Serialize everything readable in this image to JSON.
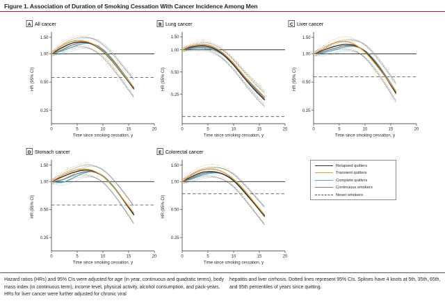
{
  "figure_title": "Figure 1. Association of Duration of Smoking Cessation With Cancer Incidence Among Men",
  "legend": [
    {
      "label": "Relapsed quitters",
      "color": "#2a2a2a",
      "dash": "solid"
    },
    {
      "label": "Transient quitters",
      "color": "#e8952a",
      "dash": "solid"
    },
    {
      "label": "Complete quitters",
      "color": "#56a9c9",
      "dash": "solid"
    },
    {
      "label": "Continuous smokers",
      "color": "#7a7a7a",
      "dash": "solid"
    },
    {
      "label": "Never smokers",
      "color": "#4a4a4a",
      "dash": "dashed"
    }
  ],
  "caption": {
    "left": "Hazard ratios (HRs) and 95% CIs were adjusted for age (in year, continuous and quadratic terms), body mass index (in continuous term), income level, physical activity, alcohol consumption, and pack-years. HRs for liver cancer were further adjusted for chronic viral",
    "right": "hepatitis and liver cirrhosis. Dotted lines represent 95% CIs. Splines have 4 knots at 5th, 35th, 65th, and 95th percentiles of years since quitting."
  },
  "chart_data": [
    {
      "type": "line",
      "letter": "A",
      "title": "All cancer",
      "xlabel": "Time since smoking cessation, y",
      "ylabel": "HR (95% CI)",
      "xlim": [
        0,
        20
      ],
      "xticks": [
        0,
        5,
        10,
        15,
        20
      ],
      "yscale": "log",
      "ylim": [
        0.18,
        1.6
      ],
      "yticks": [
        0.25,
        0.5,
        1.0,
        1.5
      ],
      "ytick_labels": [
        "0.25",
        "0.50",
        "1.00",
        "1.50"
      ],
      "reference_y": 1.0,
      "never_smokers_hr": 0.56,
      "series": [
        {
          "color": "#2a2a2a",
          "x": [
            0,
            2,
            4,
            6,
            8,
            10,
            12,
            14,
            16
          ],
          "y": [
            1.0,
            1.16,
            1.3,
            1.34,
            1.26,
            1.06,
            0.81,
            0.59,
            0.43
          ]
        },
        {
          "color": "#e8952a",
          "x": [
            0,
            2,
            4,
            6,
            8,
            10,
            12,
            14,
            16
          ],
          "y": [
            1.0,
            1.22,
            1.36,
            1.38,
            1.28,
            1.07,
            0.82,
            0.6,
            0.44
          ]
        },
        {
          "color": "#56a9c9",
          "x": [
            0,
            2,
            4,
            6,
            8,
            10,
            12,
            14,
            16
          ],
          "y": [
            1.0,
            1.07,
            1.18,
            1.28,
            1.28,
            1.12,
            0.86,
            0.62,
            0.44
          ]
        },
        {
          "color": "#7a7a7a",
          "x": [
            0,
            2,
            4,
            6,
            8,
            10,
            12,
            14,
            16
          ],
          "y": [
            1.0,
            1.1,
            1.24,
            1.32,
            1.27,
            1.09,
            0.84,
            0.6,
            0.42
          ]
        }
      ]
    },
    {
      "type": "line",
      "letter": "B",
      "title": "Lung cancer",
      "xlabel": "Time since smoking cessation, y",
      "ylabel": "HR (95% CI)",
      "xlim": [
        0,
        20
      ],
      "xticks": [
        0,
        5,
        10,
        15,
        20
      ],
      "yscale": "log",
      "ylim": [
        0.1,
        1.6
      ],
      "yticks": [
        0.25,
        0.5,
        1.0,
        1.5
      ],
      "ytick_labels": [
        "0.25",
        "0.50",
        "1.00",
        "1.50"
      ],
      "reference_y": 1.0,
      "never_smokers_hr": 0.125,
      "series": [
        {
          "color": "#2a2a2a",
          "x": [
            0,
            2,
            4,
            6,
            8,
            10,
            12,
            14,
            16
          ],
          "y": [
            1.0,
            1.1,
            1.14,
            1.06,
            0.86,
            0.62,
            0.42,
            0.29,
            0.21
          ]
        },
        {
          "color": "#e8952a",
          "x": [
            0,
            2,
            4,
            6,
            8,
            10,
            12,
            14,
            16
          ],
          "y": [
            1.0,
            1.14,
            1.18,
            1.1,
            0.9,
            0.66,
            0.45,
            0.32,
            0.23
          ]
        },
        {
          "color": "#56a9c9",
          "x": [
            0,
            2,
            4,
            6,
            8,
            10,
            12,
            14,
            16
          ],
          "y": [
            1.0,
            1.04,
            1.06,
            1.0,
            0.84,
            0.62,
            0.43,
            0.3,
            0.21
          ]
        },
        {
          "color": "#7a7a7a",
          "x": [
            0,
            2,
            4,
            6,
            8,
            10,
            12,
            14,
            16
          ],
          "y": [
            1.0,
            1.07,
            1.1,
            1.03,
            0.86,
            0.64,
            0.44,
            0.31,
            0.22
          ]
        }
      ]
    },
    {
      "type": "line",
      "letter": "C",
      "title": "Liver cancer",
      "xlabel": "Time since smoking cessation, y",
      "ylabel": "HR (95% CI)",
      "xlim": [
        0,
        20
      ],
      "xticks": [
        0,
        5,
        10,
        15,
        20
      ],
      "yscale": "log",
      "ylim": [
        0.18,
        1.6
      ],
      "yticks": [
        0.25,
        0.5,
        1.0,
        1.5
      ],
      "ytick_labels": [
        "0.25",
        "0.50",
        "1.00",
        "1.50"
      ],
      "reference_y": 1.0,
      "never_smokers_hr": 0.57,
      "series": [
        {
          "color": "#2a2a2a",
          "x": [
            0,
            2,
            4,
            6,
            8,
            10,
            12,
            14,
            16
          ],
          "y": [
            1.0,
            1.1,
            1.2,
            1.26,
            1.23,
            1.06,
            0.8,
            0.56,
            0.38
          ]
        },
        {
          "color": "#e8952a",
          "x": [
            0,
            2,
            4,
            6,
            8,
            10,
            12,
            14,
            16
          ],
          "y": [
            1.0,
            1.14,
            1.3,
            1.36,
            1.26,
            1.04,
            0.78,
            0.56,
            0.4
          ]
        },
        {
          "color": "#56a9c9",
          "x": [
            0,
            2,
            4,
            6,
            8,
            10,
            12,
            14,
            16
          ],
          "y": [
            1.0,
            1.03,
            1.1,
            1.18,
            1.2,
            1.08,
            0.84,
            0.59,
            0.4
          ]
        },
        {
          "color": "#7a7a7a",
          "x": [
            0,
            2,
            4,
            6,
            8,
            10,
            12,
            14,
            16
          ],
          "y": [
            1.0,
            1.06,
            1.14,
            1.22,
            1.21,
            1.07,
            0.82,
            0.58,
            0.39
          ]
        }
      ]
    },
    {
      "type": "line",
      "letter": "D",
      "title": "Stomach cancer",
      "xlabel": "Time since smoking cessation, y",
      "ylabel": "HR (95% CI)",
      "xlim": [
        0,
        20
      ],
      "xticks": [
        0,
        5,
        10,
        15,
        20
      ],
      "yscale": "log",
      "ylim": [
        0.18,
        1.6
      ],
      "yticks": [
        0.25,
        0.5,
        1.0,
        1.5
      ],
      "ytick_labels": [
        "0.25",
        "0.50",
        "1.00",
        "1.50"
      ],
      "reference_y": 1.0,
      "never_smokers_hr": 0.56,
      "series": [
        {
          "color": "#2a2a2a",
          "x": [
            0,
            2,
            4,
            6,
            8,
            10,
            12,
            14,
            16
          ],
          "y": [
            1.0,
            1.12,
            1.24,
            1.32,
            1.3,
            1.14,
            0.88,
            0.63,
            0.44
          ]
        },
        {
          "color": "#e8952a",
          "x": [
            0,
            2,
            4,
            6,
            8,
            10,
            12,
            14,
            16
          ],
          "y": [
            1.0,
            1.16,
            1.3,
            1.36,
            1.32,
            1.14,
            0.88,
            0.64,
            0.46
          ]
        },
        {
          "color": "#56a9c9",
          "x": [
            0,
            2,
            4,
            6,
            8,
            10,
            12,
            14,
            16
          ],
          "y": [
            1.0,
            0.98,
            1.08,
            1.22,
            1.28,
            1.16,
            0.9,
            0.64,
            0.44
          ]
        },
        {
          "color": "#7a7a7a",
          "x": [
            0,
            2,
            4,
            6,
            8,
            10,
            12,
            14,
            16
          ],
          "y": [
            1.0,
            1.04,
            1.16,
            1.26,
            1.28,
            1.14,
            0.88,
            0.63,
            0.44
          ]
        }
      ]
    },
    {
      "type": "line",
      "letter": "E",
      "title": "Colorectal cancer",
      "xlabel": "Time since smoking cessation, y",
      "ylabel": "HR (95% CI)",
      "xlim": [
        0,
        20
      ],
      "xticks": [
        0,
        5,
        10,
        15,
        20
      ],
      "yscale": "log",
      "ylim": [
        0.18,
        1.6
      ],
      "yticks": [
        0.25,
        0.5,
        1.0,
        1.5
      ],
      "ytick_labels": [
        "0.25",
        "0.50",
        "1.00",
        "1.50"
      ],
      "reference_y": 1.0,
      "never_smokers_hr": 0.74,
      "series": [
        {
          "color": "#2a2a2a",
          "x": [
            0,
            2,
            4,
            6,
            8,
            10,
            12,
            14,
            16
          ],
          "y": [
            1.0,
            1.14,
            1.26,
            1.28,
            1.2,
            1.02,
            0.78,
            0.58,
            0.43
          ]
        },
        {
          "color": "#e8952a",
          "x": [
            0,
            2,
            4,
            6,
            8,
            10,
            12,
            14,
            16
          ],
          "y": [
            1.0,
            1.2,
            1.34,
            1.36,
            1.26,
            1.06,
            0.82,
            0.6,
            0.44
          ]
        },
        {
          "color": "#56a9c9",
          "x": [
            0,
            2,
            4,
            6,
            8,
            10,
            12,
            14,
            16
          ],
          "y": [
            1.0,
            1.08,
            1.18,
            1.24,
            1.2,
            1.04,
            0.8,
            0.59,
            0.43
          ]
        },
        {
          "color": "#7a7a7a",
          "x": [
            0,
            2,
            4,
            6,
            8,
            10,
            12,
            14,
            16
          ],
          "y": [
            1.0,
            1.1,
            1.22,
            1.26,
            1.2,
            1.03,
            0.79,
            0.58,
            0.42
          ]
        }
      ]
    }
  ]
}
